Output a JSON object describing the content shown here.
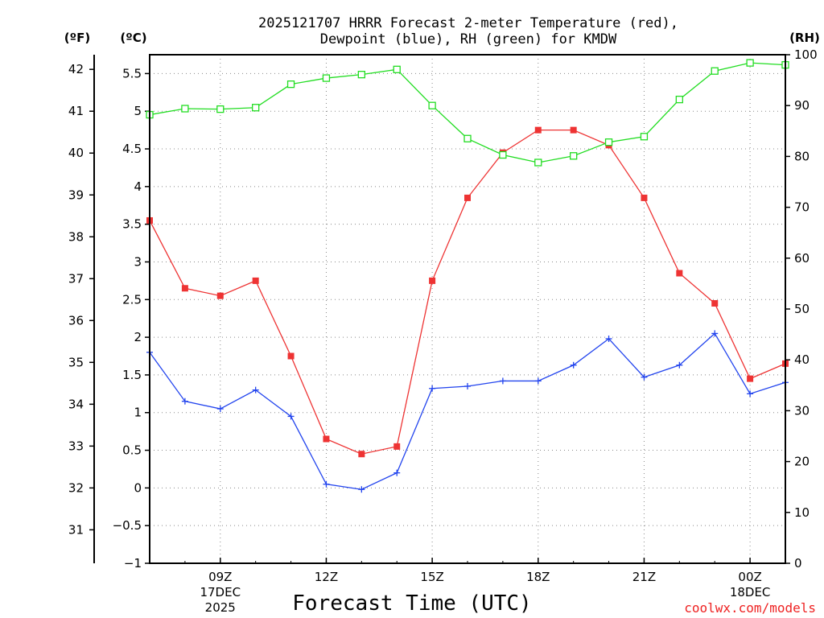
{
  "chart_data": {
    "type": "line",
    "title_line1": "2025121707 HRRR Forecast 2-meter Temperature (red),",
    "title_line2": "Dewpoint (blue), RH (green) for KMDW",
    "xlabel": "Forecast Time (UTC)",
    "credit": "coolwx.com/models",
    "left_outer_axis_label": "(ºF)",
    "left_inner_axis_label": "(ºC)",
    "right_axis_label": "(RH)",
    "x_hours": [
      7,
      8,
      9,
      10,
      11,
      12,
      13,
      14,
      15,
      16,
      17,
      18,
      19,
      20,
      21,
      22,
      23,
      24,
      25
    ],
    "x_range": [
      7,
      25
    ],
    "x_ticks": [
      {
        "h": 9,
        "label": "09Z",
        "sub1": "17DEC",
        "sub2": "2025"
      },
      {
        "h": 12,
        "label": "12Z",
        "sub1": "",
        "sub2": ""
      },
      {
        "h": 15,
        "label": "15Z",
        "sub1": "",
        "sub2": ""
      },
      {
        "h": 18,
        "label": "18Z",
        "sub1": "",
        "sub2": ""
      },
      {
        "h": 21,
        "label": "21Z",
        "sub1": "",
        "sub2": ""
      },
      {
        "h": 24,
        "label": "00Z",
        "sub1": "18DEC",
        "sub2": ""
      }
    ],
    "celsius_range": [
      -1,
      5.75
    ],
    "celsius_ticks": [
      -1,
      -0.5,
      0,
      0.5,
      1,
      1.5,
      2,
      2.5,
      3,
      3.5,
      4,
      4.5,
      5,
      5.5
    ],
    "celsius_tick_labels": [
      "−1",
      "−0.5",
      "0",
      "0.5",
      "1",
      "1.5",
      "2",
      "2.5",
      "3",
      "3.5",
      "4",
      "4.5",
      "5",
      "5.5"
    ],
    "fahrenheit_ticks": [
      31,
      32,
      33,
      34,
      35,
      36,
      37,
      38,
      39,
      40,
      41,
      42
    ],
    "fahrenheit_tick_labels": [
      "31",
      "32",
      "33",
      "34",
      "35",
      "36",
      "37",
      "38",
      "39",
      "40",
      "41",
      "42"
    ],
    "rh_range": [
      0,
      100
    ],
    "rh_ticks": [
      0,
      10,
      20,
      30,
      40,
      50,
      60,
      70,
      80,
      90,
      100
    ],
    "rh_tick_labels": [
      "0",
      "10",
      "20",
      "30",
      "40",
      "50",
      "60",
      "70",
      "80",
      "90",
      "100"
    ],
    "series": [
      {
        "name": "Temperature",
        "units": "°C",
        "color": "#ee3333",
        "marker": "filled-square",
        "values": [
          3.55,
          2.65,
          2.55,
          2.75,
          1.75,
          0.65,
          0.45,
          0.55,
          2.75,
          3.85,
          4.45,
          4.75,
          4.75,
          4.55,
          3.85,
          2.85,
          2.45,
          1.45,
          1.65
        ]
      },
      {
        "name": "Dewpoint",
        "units": "°C",
        "color": "#2244ee",
        "marker": "plus",
        "values": [
          1.8,
          1.15,
          1.05,
          1.3,
          0.95,
          0.05,
          -0.02,
          0.2,
          1.32,
          1.35,
          1.42,
          1.42,
          1.63,
          1.98,
          1.47,
          1.63,
          2.05,
          1.25,
          1.4
        ]
      },
      {
        "name": "RH",
        "units": "%",
        "color": "#22dd22",
        "marker": "open-square",
        "values": [
          88.2,
          89.4,
          89.3,
          89.6,
          94.2,
          95.4,
          96.1,
          97.1,
          90.0,
          83.5,
          80.3,
          78.8,
          80.1,
          82.8,
          83.9,
          91.2,
          96.8,
          98.4,
          98.0
        ]
      }
    ],
    "grid": true
  }
}
